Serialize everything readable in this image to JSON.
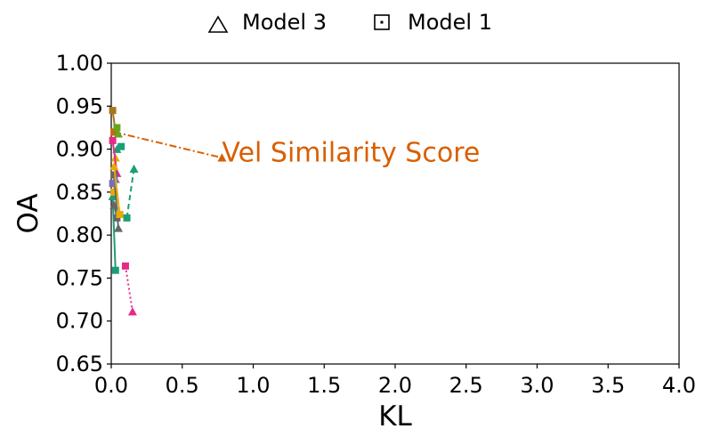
{
  "chart_data": {
    "type": "line",
    "title": "",
    "xlabel": "KL",
    "ylabel": "OA",
    "xlim": [
      0.0,
      4.0
    ],
    "ylim": [
      0.65,
      1.0
    ],
    "xticks": [
      "0.0",
      "0.5",
      "1.0",
      "1.5",
      "2.0",
      "2.5",
      "3.0",
      "3.5",
      "4.0"
    ],
    "yticks": [
      "0.65",
      "0.70",
      "0.75",
      "0.80",
      "0.85",
      "0.90",
      "0.95",
      "1.00"
    ],
    "grid": false,
    "legend": {
      "placement": "top-center",
      "entries": [
        {
          "label": "Model 3",
          "marker": "triangle"
        },
        {
          "label": "Model 1",
          "marker": "square"
        }
      ]
    },
    "annotations": [
      {
        "text": "Vel Similarity Score",
        "color": "#d95f02",
        "arrow_from": [
          0.02,
          0.92
        ],
        "arrow_to": [
          0.78,
          0.89
        ],
        "text_at": [
          0.78,
          0.897
        ]
      }
    ],
    "series": [
      {
        "color": "#d95f02",
        "linestyle": "dashdot",
        "points": [
          {
            "x": 0.02,
            "y": 0.92,
            "marker": "square"
          },
          {
            "x": 0.78,
            "y": 0.89,
            "marker": "triangle"
          }
        ]
      },
      {
        "color": "#1b9e77",
        "linestyle": "dashed",
        "points": [
          {
            "x": 0.11,
            "y": 0.82,
            "marker": "square"
          },
          {
            "x": 0.16,
            "y": 0.877,
            "marker": "triangle"
          }
        ]
      },
      {
        "color": "#1b9e77",
        "linestyle": "solid",
        "points": [
          {
            "x": 0.03,
            "y": 0.759,
            "marker": "square"
          },
          {
            "x": 0.01,
            "y": 0.845,
            "marker": "triangle"
          }
        ]
      },
      {
        "color": "#e7298a",
        "linestyle": "dotted",
        "points": [
          {
            "x": 0.1,
            "y": 0.764,
            "marker": "square"
          },
          {
            "x": 0.15,
            "y": 0.711,
            "marker": "triangle"
          }
        ]
      },
      {
        "color": "#a6761d",
        "linestyle": "solid",
        "points": [
          {
            "x": 0.01,
            "y": 0.945,
            "marker": "square"
          },
          {
            "x": 0.03,
            "y": 0.92,
            "marker": "triangle"
          }
        ]
      },
      {
        "color": "#66a61e",
        "linestyle": "solid",
        "points": [
          {
            "x": 0.04,
            "y": 0.925,
            "marker": "square"
          },
          {
            "x": 0.05,
            "y": 0.918,
            "marker": "triangle"
          }
        ]
      },
      {
        "color": "#1b9e77",
        "linestyle": "solid",
        "points": [
          {
            "x": 0.07,
            "y": 0.903,
            "marker": "square"
          },
          {
            "x": 0.04,
            "y": 0.9,
            "marker": "triangle"
          }
        ]
      },
      {
        "color": "#e6ab02",
        "linestyle": "solid",
        "points": [
          {
            "x": 0.02,
            "y": 0.85,
            "marker": "square"
          },
          {
            "x": 0.03,
            "y": 0.89,
            "marker": "triangle"
          }
        ]
      },
      {
        "color": "#e7298a",
        "linestyle": "solid",
        "points": [
          {
            "x": 0.01,
            "y": 0.91,
            "marker": "square"
          },
          {
            "x": 0.04,
            "y": 0.872,
            "marker": "triangle"
          }
        ]
      },
      {
        "color": "#666666",
        "linestyle": "solid",
        "points": [
          {
            "x": 0.02,
            "y": 0.87,
            "marker": "square"
          },
          {
            "x": 0.05,
            "y": 0.808,
            "marker": "triangle"
          }
        ]
      },
      {
        "color": "#666666",
        "linestyle": "solid",
        "points": [
          {
            "x": 0.04,
            "y": 0.82,
            "marker": "square"
          },
          {
            "x": 0.02,
            "y": 0.835,
            "marker": "triangle"
          }
        ]
      },
      {
        "color": "#7570b3",
        "linestyle": "solid",
        "points": [
          {
            "x": 0.01,
            "y": 0.86,
            "marker": "square"
          },
          {
            "x": 0.03,
            "y": 0.865,
            "marker": "triangle"
          }
        ]
      },
      {
        "color": "#e6ab02",
        "linestyle": "solid",
        "points": [
          {
            "x": 0.06,
            "y": 0.824,
            "marker": "square"
          },
          {
            "x": 0.02,
            "y": 0.88,
            "marker": "triangle"
          }
        ]
      }
    ]
  }
}
